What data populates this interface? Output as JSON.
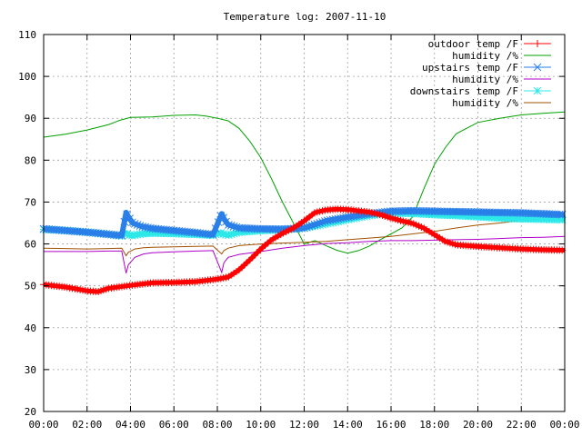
{
  "chart_data": {
    "type": "line",
    "title": "Temperature log: 2007-11-10",
    "xlabel": "",
    "ylabel": "",
    "xlim": [
      0,
      24
    ],
    "ylim": [
      20,
      110
    ],
    "grid": true,
    "legend_position": "top-right",
    "x_ticks": [
      "00:00",
      "02:00",
      "04:00",
      "06:00",
      "08:00",
      "10:00",
      "12:00",
      "14:00",
      "16:00",
      "18:00",
      "20:00",
      "22:00",
      "00:00"
    ],
    "y_ticks": [
      "20",
      "30",
      "40",
      "50",
      "60",
      "70",
      "80",
      "90",
      "100",
      "110"
    ],
    "series": [
      {
        "name": "outdoor temp /F",
        "color": "#ff0000",
        "marker": "plus",
        "x": [
          0,
          1,
          2,
          2.5,
          3,
          4,
          5,
          6,
          7,
          8,
          8.5,
          9,
          9.5,
          10,
          10.5,
          11,
          11.5,
          12,
          12.5,
          13,
          13.5,
          14,
          15,
          15.5,
          16,
          16.5,
          17,
          17.5,
          18,
          18.5,
          19,
          20,
          21,
          22,
          23,
          24
        ],
        "y": [
          50.3,
          49.7,
          48.8,
          48.6,
          49.4,
          50.1,
          50.7,
          50.8,
          51.0,
          51.6,
          52.1,
          53.8,
          56.2,
          58.8,
          61.0,
          62.5,
          63.8,
          65.5,
          67.5,
          68.1,
          68.3,
          68.2,
          67.6,
          67.0,
          66.2,
          65.5,
          64.9,
          63.8,
          62.2,
          60.6,
          59.8,
          59.4,
          59.1,
          58.8,
          58.6,
          58.5
        ]
      },
      {
        "name": "humidity /%",
        "color": "#00a000",
        "marker": "none",
        "x": [
          0,
          1,
          2,
          3,
          3.5,
          4,
          5,
          6,
          7,
          7.5,
          8,
          8.5,
          9,
          9.5,
          10,
          10.5,
          11,
          11.5,
          12,
          12.5,
          13,
          13.5,
          14,
          14.5,
          15,
          15.5,
          16,
          16.5,
          17,
          17.5,
          18,
          18.5,
          19,
          20,
          21,
          22,
          23,
          24
        ],
        "y": [
          85.5,
          86.2,
          87.2,
          88.5,
          89.5,
          90.2,
          90.3,
          90.7,
          90.8,
          90.5,
          90.0,
          89.4,
          87.6,
          84.5,
          80.6,
          75.5,
          70.0,
          65.0,
          60.0,
          60.8,
          59.6,
          58.5,
          57.8,
          58.4,
          59.5,
          61.0,
          62.4,
          63.8,
          66.5,
          73.0,
          79.0,
          83.0,
          86.3,
          89.0,
          90.0,
          90.8,
          91.2,
          91.5
        ]
      },
      {
        "name": "upstairs temp /F",
        "color": "#2a7fe8",
        "marker": "x",
        "x": [
          0,
          1,
          2,
          3,
          3.6,
          3.8,
          3.9,
          4.1,
          4.5,
          5,
          6,
          7,
          7.8,
          8.2,
          8.3,
          8.5,
          9,
          10,
          11,
          12,
          13,
          14,
          15,
          16,
          17,
          18,
          19,
          20,
          21,
          22,
          23,
          24
        ],
        "y": [
          63.6,
          63.2,
          62.8,
          62.3,
          62.0,
          67.5,
          66.5,
          65.0,
          64.2,
          63.7,
          63.2,
          62.7,
          62.2,
          67.2,
          66.0,
          64.6,
          63.8,
          63.6,
          63.5,
          63.8,
          65.5,
          66.4,
          67.2,
          67.8,
          67.9,
          67.8,
          67.7,
          67.6,
          67.5,
          67.4,
          67.2,
          67.0
        ]
      },
      {
        "name": "humidity /%",
        "color": "#b000c8",
        "marker": "none",
        "x": [
          0,
          1,
          2,
          3,
          3.6,
          3.8,
          3.9,
          4.2,
          4.6,
          5,
          6,
          7,
          7.8,
          8.2,
          8.3,
          8.5,
          9,
          10,
          11,
          12,
          13,
          14,
          15,
          16,
          17,
          18,
          19,
          20,
          21,
          22,
          23,
          24
        ],
        "y": [
          58.2,
          58.2,
          58.2,
          58.3,
          58.3,
          53.0,
          55.0,
          56.8,
          57.6,
          57.9,
          58.1,
          58.3,
          58.4,
          53.2,
          55.5,
          56.8,
          57.5,
          58.2,
          59.0,
          59.6,
          60.1,
          60.3,
          60.6,
          60.8,
          60.8,
          60.9,
          61.0,
          61.1,
          61.3,
          61.5,
          61.6,
          61.8
        ]
      },
      {
        "name": "downstairs temp /F",
        "color": "#2ee8e8",
        "marker": "star",
        "x": [
          0,
          1,
          2,
          3,
          3.6,
          3.8,
          3.9,
          4.1,
          4.5,
          5,
          6,
          7,
          7.8,
          8.2,
          8.3,
          8.5,
          9,
          10,
          11,
          12,
          13,
          14,
          15,
          16,
          17,
          18,
          19,
          20,
          21,
          22,
          23,
          24
        ],
        "y": [
          63.5,
          63.2,
          62.8,
          62.3,
          61.9,
          62.6,
          62.2,
          62.0,
          62.4,
          62.6,
          62.5,
          62.3,
          62.1,
          62.7,
          62.3,
          62.1,
          62.8,
          63.2,
          63.4,
          63.8,
          64.8,
          65.8,
          66.8,
          67.4,
          67.3,
          67.0,
          66.8,
          66.5,
          66.2,
          66.0,
          65.9,
          65.8
        ]
      },
      {
        "name": "humidity /%",
        "color": "#a05000",
        "marker": "none",
        "x": [
          0,
          1,
          2,
          3,
          3.6,
          3.8,
          3.9,
          4.2,
          4.6,
          5,
          6,
          7,
          7.8,
          8.2,
          8.3,
          8.5,
          9,
          10,
          11,
          12,
          13,
          14,
          15,
          16,
          17,
          18,
          19,
          20,
          21,
          22,
          23,
          24
        ],
        "y": [
          59.0,
          58.9,
          58.8,
          58.9,
          59.0,
          57.2,
          58.0,
          58.8,
          59.1,
          59.2,
          59.3,
          59.4,
          59.5,
          57.6,
          58.4,
          59.0,
          59.6,
          60.0,
          60.2,
          60.4,
          60.6,
          61.0,
          61.4,
          61.8,
          62.4,
          63.0,
          63.8,
          64.5,
          65.0,
          65.6,
          65.9,
          66.1
        ]
      }
    ]
  }
}
